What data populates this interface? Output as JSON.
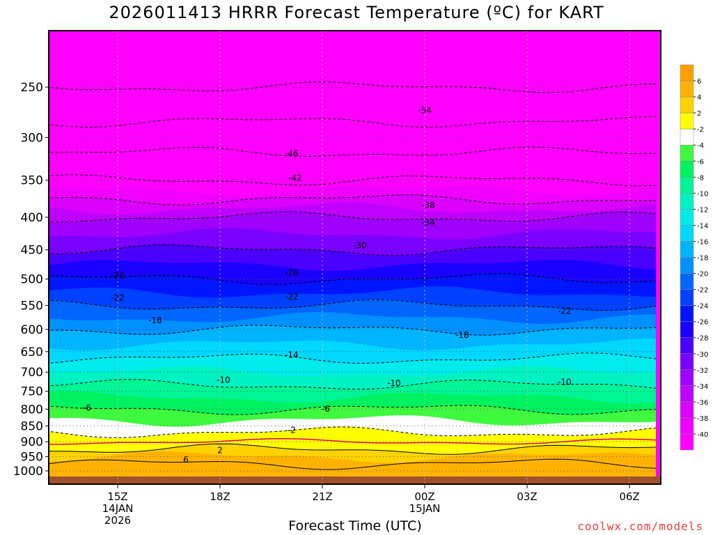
{
  "chart_data": {
    "type": "heatmap",
    "title": "2026011413 HRRR Forecast Temperature (ºC) for KART",
    "xlabel": "Forecast Time (UTC)",
    "ylabel": "",
    "x_ticks": [
      {
        "hour": 2,
        "lines": [
          "15Z",
          "14JAN",
          "2026"
        ]
      },
      {
        "hour": 5,
        "lines": [
          "18Z"
        ]
      },
      {
        "hour": 8,
        "lines": [
          "21Z"
        ]
      },
      {
        "hour": 11,
        "lines": [
          "00Z",
          "15JAN"
        ]
      },
      {
        "hour": 14,
        "lines": [
          "03Z"
        ]
      },
      {
        "hour": 17,
        "lines": [
          "06Z"
        ]
      }
    ],
    "xlim_hours": [
      0,
      18
    ],
    "y_ticks": [
      250,
      300,
      350,
      400,
      450,
      500,
      550,
      600,
      650,
      700,
      750,
      800,
      850,
      900,
      950,
      1000
    ],
    "y_axis": "pressure (hPa), top 200, bottom 1030",
    "colorbar": {
      "levels": [
        6,
        4,
        2,
        -2,
        -4,
        -6,
        -8,
        -10,
        -12,
        -14,
        -16,
        -18,
        -20,
        -22,
        -24,
        -26,
        -28,
        -30,
        -32,
        -34,
        -36,
        -38,
        -40
      ],
      "colors": [
        "#ffb300",
        "#ffd300",
        "#ffff00",
        "#ffffff",
        "#3ff93f",
        "#00f260",
        "#00f594",
        "#00f2c3",
        "#00ecec",
        "#00d8ff",
        "#00b4ff",
        "#0090ff",
        "#0066ff",
        "#0040ff",
        "#0014ff",
        "#1a00ff",
        "#4a00ff",
        "#7a00ff",
        "#a000ff",
        "#c000ff",
        "#dc00ff",
        "#f000ff",
        "#ff00ff"
      ]
    },
    "ground_color": "#a0522d",
    "temperature_profile": [
      {
        "p": 1000,
        "t": 8
      },
      {
        "p": 975,
        "t": 6
      },
      {
        "p": 950,
        "t": 4
      },
      {
        "p": 925,
        "t": 2
      },
      {
        "p": 900,
        "t": 0
      },
      {
        "p": 870,
        "t": -2
      },
      {
        "p": 850,
        "t": -3
      },
      {
        "p": 800,
        "t": -6
      },
      {
        "p": 750,
        "t": -9
      },
      {
        "p": 700,
        "t": -12
      },
      {
        "p": 650,
        "t": -15
      },
      {
        "p": 600,
        "t": -18
      },
      {
        "p": 550,
        "t": -22
      },
      {
        "p": 500,
        "t": -26
      },
      {
        "p": 450,
        "t": -30
      },
      {
        "p": 400,
        "t": -34
      },
      {
        "p": 350,
        "t": -42
      },
      {
        "p": 300,
        "t": -48
      },
      {
        "p": 250,
        "t": -54
      },
      {
        "p": 200,
        "t": -58
      }
    ],
    "contour_labels": [
      {
        "text": "-54",
        "hour": 11.0,
        "p": 272
      },
      {
        "text": "-46",
        "hour": 7.1,
        "p": 318
      },
      {
        "text": "-42",
        "hour": 7.2,
        "p": 347
      },
      {
        "text": "-38",
        "hour": 11.1,
        "p": 383
      },
      {
        "text": "-34",
        "hour": 11.1,
        "p": 408
      },
      {
        "text": "-30",
        "hour": 9.1,
        "p": 443
      },
      {
        "text": "-26",
        "hour": 2.0,
        "p": 494
      },
      {
        "text": "-26",
        "hour": 7.1,
        "p": 489
      },
      {
        "text": "-22",
        "hour": 2.0,
        "p": 535
      },
      {
        "text": "-22",
        "hour": 7.1,
        "p": 533
      },
      {
        "text": "-22",
        "hour": 15.1,
        "p": 561
      },
      {
        "text": "-18",
        "hour": 3.1,
        "p": 581
      },
      {
        "text": "-18",
        "hour": 12.1,
        "p": 612
      },
      {
        "text": "-14",
        "hour": 7.1,
        "p": 658
      },
      {
        "text": "-10",
        "hour": 5.1,
        "p": 720
      },
      {
        "text": "-10",
        "hour": 10.1,
        "p": 728
      },
      {
        "text": "-10",
        "hour": 15.1,
        "p": 726
      },
      {
        "text": "-6",
        "hour": 1.1,
        "p": 796
      },
      {
        "text": "-6",
        "hour": 8.1,
        "p": 799
      },
      {
        "text": "-2",
        "hour": 7.1,
        "p": 863
      },
      {
        "text": "2",
        "hour": 5.0,
        "p": 928
      },
      {
        "text": "6",
        "hour": 4.0,
        "p": 961
      }
    ]
  },
  "credit": "coolwx.com/models"
}
